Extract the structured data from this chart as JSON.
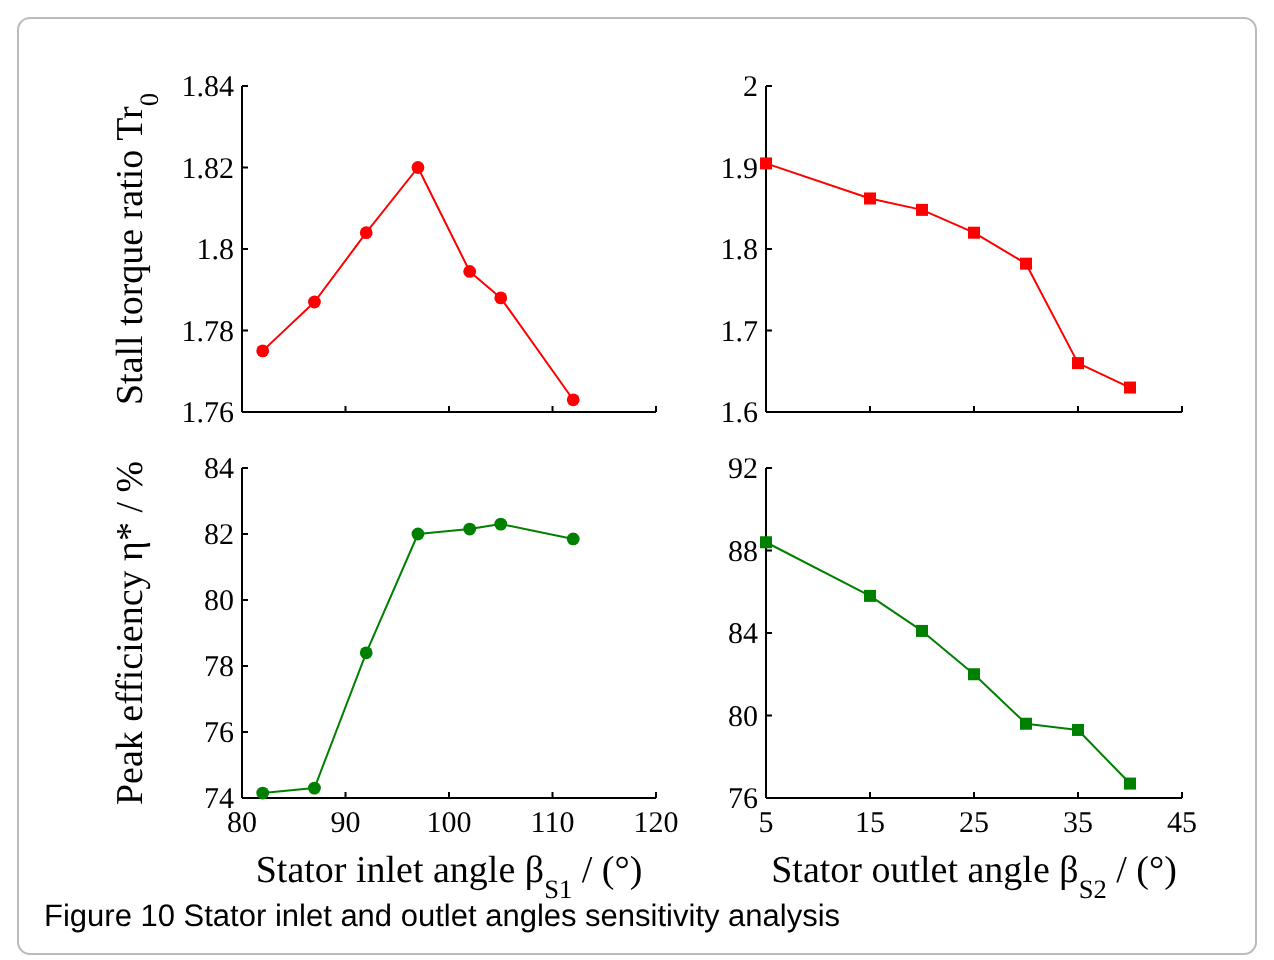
{
  "chart_data": [
    {
      "type": "line",
      "ylabel": "Stall torque ratio Tr$_{0}$",
      "x": [
        82,
        87,
        92,
        97,
        102,
        105,
        112
      ],
      "series": [
        {
          "color": "#ff0000",
          "values": [
            1.775,
            1.787,
            1.804,
            1.82,
            1.7945,
            1.788,
            1.763
          ]
        }
      ],
      "xlim": [
        80,
        120
      ],
      "xticks": [
        {
          "value": 80,
          "label": null
        },
        {
          "value": 90,
          "label": null
        },
        {
          "value": 100,
          "label": null
        },
        {
          "value": 110,
          "label": null
        },
        {
          "value": 120,
          "label": null
        }
      ],
      "ylim": [
        1.76,
        1.84
      ],
      "yticks": [
        1.76,
        1.78,
        1.8,
        1.82,
        1.84
      ],
      "tick_labels": "y",
      "marker": "circle",
      "annotations": [
        "Figure 10  Stator inlet and outlet angles sensitivity analysis"
      ]
    },
    {
      "type": "line",
      "x": [
        5,
        15,
        20,
        25,
        30,
        35,
        40
      ],
      "series": [
        {
          "color": "#ff0000",
          "values": [
            1.905,
            1.862,
            1.848,
            1.82,
            1.782,
            1.66,
            1.63
          ]
        }
      ],
      "xlim": [
        5,
        45
      ],
      "xticks": [
        {
          "value": 5,
          "label": null
        },
        {
          "value": 15,
          "label": null
        },
        {
          "value": 25,
          "label": null
        },
        {
          "value": 35,
          "label": null
        },
        {
          "value": 45,
          "label": null
        }
      ],
      "ylim": [
        1.6,
        2
      ],
      "yticks": [
        1.6,
        1.7,
        1.8,
        1.9,
        2
      ],
      "tick_labels": "y",
      "marker": "square"
    },
    {
      "type": "line",
      "ylabel": "Peak efficiency η* / %",
      "xlabel": "Stator inlet angle β$_{S1}$ / (°)",
      "x": [
        82,
        87,
        92,
        97,
        102,
        105,
        112
      ],
      "series": [
        {
          "color": "#008000",
          "values": [
            74.15,
            74.3,
            78.4,
            82,
            82.15,
            82.3,
            81.85
          ]
        }
      ],
      "xlim": [
        80,
        120
      ],
      "xticks": [
        80,
        90,
        100,
        110,
        120
      ],
      "ylim": [
        74,
        84
      ],
      "yticks": [
        74,
        76,
        78,
        80,
        82,
        84
      ],
      "marker": "circle"
    },
    {
      "type": "line",
      "xlabel": "Stator outlet angle β$_{S2}$ / (°)",
      "x": [
        5,
        15,
        20,
        25,
        30,
        35,
        40
      ],
      "series": [
        {
          "color": "#008000",
          "values": [
            88.4,
            85.8,
            84.1,
            82,
            79.6,
            79.3,
            76.7
          ]
        }
      ],
      "xlim": [
        5,
        45
      ],
      "xticks": [
        5,
        15,
        25,
        35,
        45
      ],
      "ylim": [
        76,
        92
      ],
      "yticks": [
        76,
        80,
        84,
        88,
        92
      ],
      "marker": "square"
    }
  ]
}
